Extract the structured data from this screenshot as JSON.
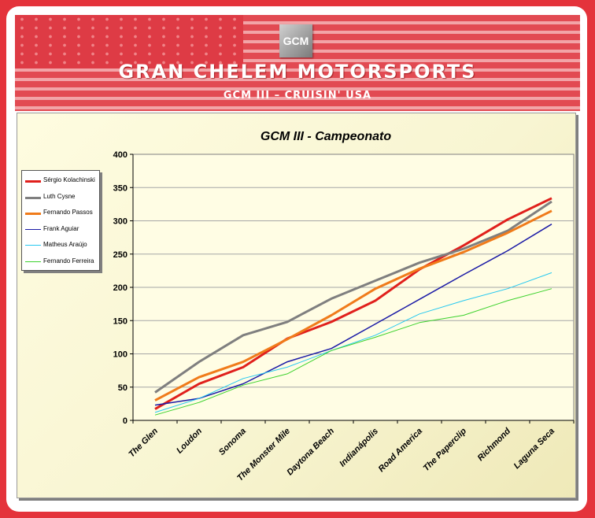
{
  "banner": {
    "logo_text": "GCM",
    "title": "GRAN CHELEM MOTORSPORTS",
    "subtitle": "GCM III – CRUISIN' USA"
  },
  "chart_data": {
    "type": "line",
    "title": "GCM III - Campeonato",
    "xlabel": "",
    "ylabel": "",
    "ylim": [
      0,
      400
    ],
    "yticks": [
      0,
      50,
      100,
      150,
      200,
      250,
      300,
      350,
      400
    ],
    "grid": true,
    "legend_position": "left",
    "categories": [
      "The Glen",
      "Loudon",
      "Sonoma",
      "The Monster Mile",
      "Daytona Beach",
      "Indianápolis",
      "Road America",
      "The Paperclip",
      "Richmond",
      "Laguna Seca"
    ],
    "series": [
      {
        "name": "Sérgio Kolachinski",
        "color": "#e0201c",
        "width": 3,
        "values": [
          17,
          55,
          80,
          123,
          148,
          180,
          227,
          263,
          302,
          334
        ]
      },
      {
        "name": "Luth Cysne",
        "color": "#7f7f7f",
        "width": 3,
        "values": [
          42,
          88,
          128,
          148,
          183,
          210,
          237,
          258,
          285,
          329
        ]
      },
      {
        "name": "Fernando Passos",
        "color": "#f07b1a",
        "width": 3,
        "values": [
          30,
          65,
          88,
          122,
          158,
          198,
          228,
          253,
          282,
          315
        ]
      },
      {
        "name": "Frank Aguiar",
        "color": "#1a1aa6",
        "width": 1.5,
        "values": [
          23,
          33,
          55,
          88,
          108,
          145,
          182,
          219,
          255,
          295
        ]
      },
      {
        "name": "Matheus Araújo",
        "color": "#25c8f0",
        "width": 1,
        "values": [
          12,
          33,
          63,
          80,
          105,
          128,
          160,
          180,
          198,
          222
        ]
      },
      {
        "name": "Fernando Ferreira",
        "color": "#3cd22d",
        "width": 1,
        "values": [
          8,
          27,
          53,
          70,
          105,
          125,
          147,
          158,
          180,
          198
        ]
      }
    ]
  }
}
